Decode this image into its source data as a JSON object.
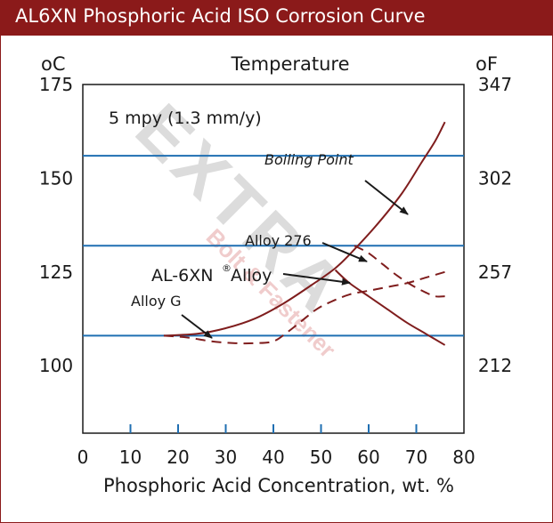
{
  "header": {
    "title": "AL6XN Phosphoric Acid ISO Corrosion Curve"
  },
  "chart_data": {
    "type": "line",
    "title": "AL6XN Phosphoric Acid ISO Corrosion Curve",
    "subtitle": "Temperature",
    "annotation": "5 mpy (1.3 mm/y)",
    "xlabel": "Phosphoric Acid  Concentration, wt. %",
    "ylabel_left": "oC",
    "ylabel_right": "oF",
    "xlim": [
      0,
      80
    ],
    "ylim": [
      82,
      175
    ],
    "x_ticks": [
      0,
      10,
      20,
      30,
      40,
      50,
      60,
      70,
      80
    ],
    "y_ticks_left": [
      {
        "value": 100,
        "label": "100"
      },
      {
        "value": 125,
        "label": "125"
      },
      {
        "value": 150,
        "label": "150"
      },
      {
        "value": 175,
        "label": "175"
      }
    ],
    "y_ticks_right": [
      {
        "value": 100,
        "label": "212"
      },
      {
        "value": 125,
        "label": "257"
      },
      {
        "value": 150,
        "label": "302"
      },
      {
        "value": 175,
        "label": "347"
      }
    ],
    "reference_lines": [
      {
        "y": 156
      },
      {
        "y": 132
      },
      {
        "y": 108
      }
    ],
    "series": [
      {
        "name": "Boiling Point",
        "style": "solid",
        "points": [
          [
            17,
            108
          ],
          [
            24,
            108.5
          ],
          [
            30,
            110
          ],
          [
            36,
            112.5
          ],
          [
            42,
            116.5
          ],
          [
            48,
            121.5
          ],
          [
            53,
            126
          ],
          [
            57,
            131
          ],
          [
            62,
            138
          ],
          [
            67,
            146
          ],
          [
            71,
            154
          ],
          [
            74,
            160
          ],
          [
            76,
            165
          ]
        ]
      },
      {
        "name": "AL-6XN®Alloy",
        "style": "solid",
        "points": [
          [
            53,
            125.5
          ],
          [
            56,
            122
          ],
          [
            60,
            118.5
          ],
          [
            64,
            115
          ],
          [
            68,
            111.5
          ],
          [
            72,
            108.5
          ],
          [
            76,
            105.5
          ]
        ]
      },
      {
        "name": "Alloy 276",
        "style": "dashed",
        "points": [
          [
            57,
            132
          ],
          [
            60,
            130
          ],
          [
            63,
            127
          ],
          [
            66,
            124
          ],
          [
            69,
            121.5
          ],
          [
            72,
            119.5
          ],
          [
            74,
            118.5
          ],
          [
            76,
            118.5
          ]
        ]
      },
      {
        "name": "Alloy G",
        "style": "dashed",
        "points": [
          [
            17,
            108
          ],
          [
            22,
            107.5
          ],
          [
            27,
            106.5
          ],
          [
            32,
            106
          ],
          [
            36,
            106
          ],
          [
            40,
            106.5
          ],
          [
            43,
            109
          ],
          [
            46,
            112
          ],
          [
            49,
            115
          ],
          [
            52,
            117
          ],
          [
            56,
            119
          ],
          [
            60,
            120
          ],
          [
            64,
            121
          ],
          [
            68,
            122
          ],
          [
            72,
            123.5
          ],
          [
            76,
            125
          ]
        ]
      }
    ],
    "labels": [
      {
        "text": "Boiling Point",
        "italic": true
      },
      {
        "text": "Alloy 276"
      },
      {
        "text": "AL-6XN"
      },
      {
        "text": "®"
      },
      {
        "text": "Alloy"
      },
      {
        "text": "Alloy G"
      }
    ],
    "watermark": [
      "EXTRA",
      "Bolt & Fastener"
    ]
  },
  "colors": {
    "brand": "#8b1a1a",
    "grid_line": "#1f6fb2",
    "curve": "#7f1d1d",
    "watermark": "#d9d9d9"
  }
}
